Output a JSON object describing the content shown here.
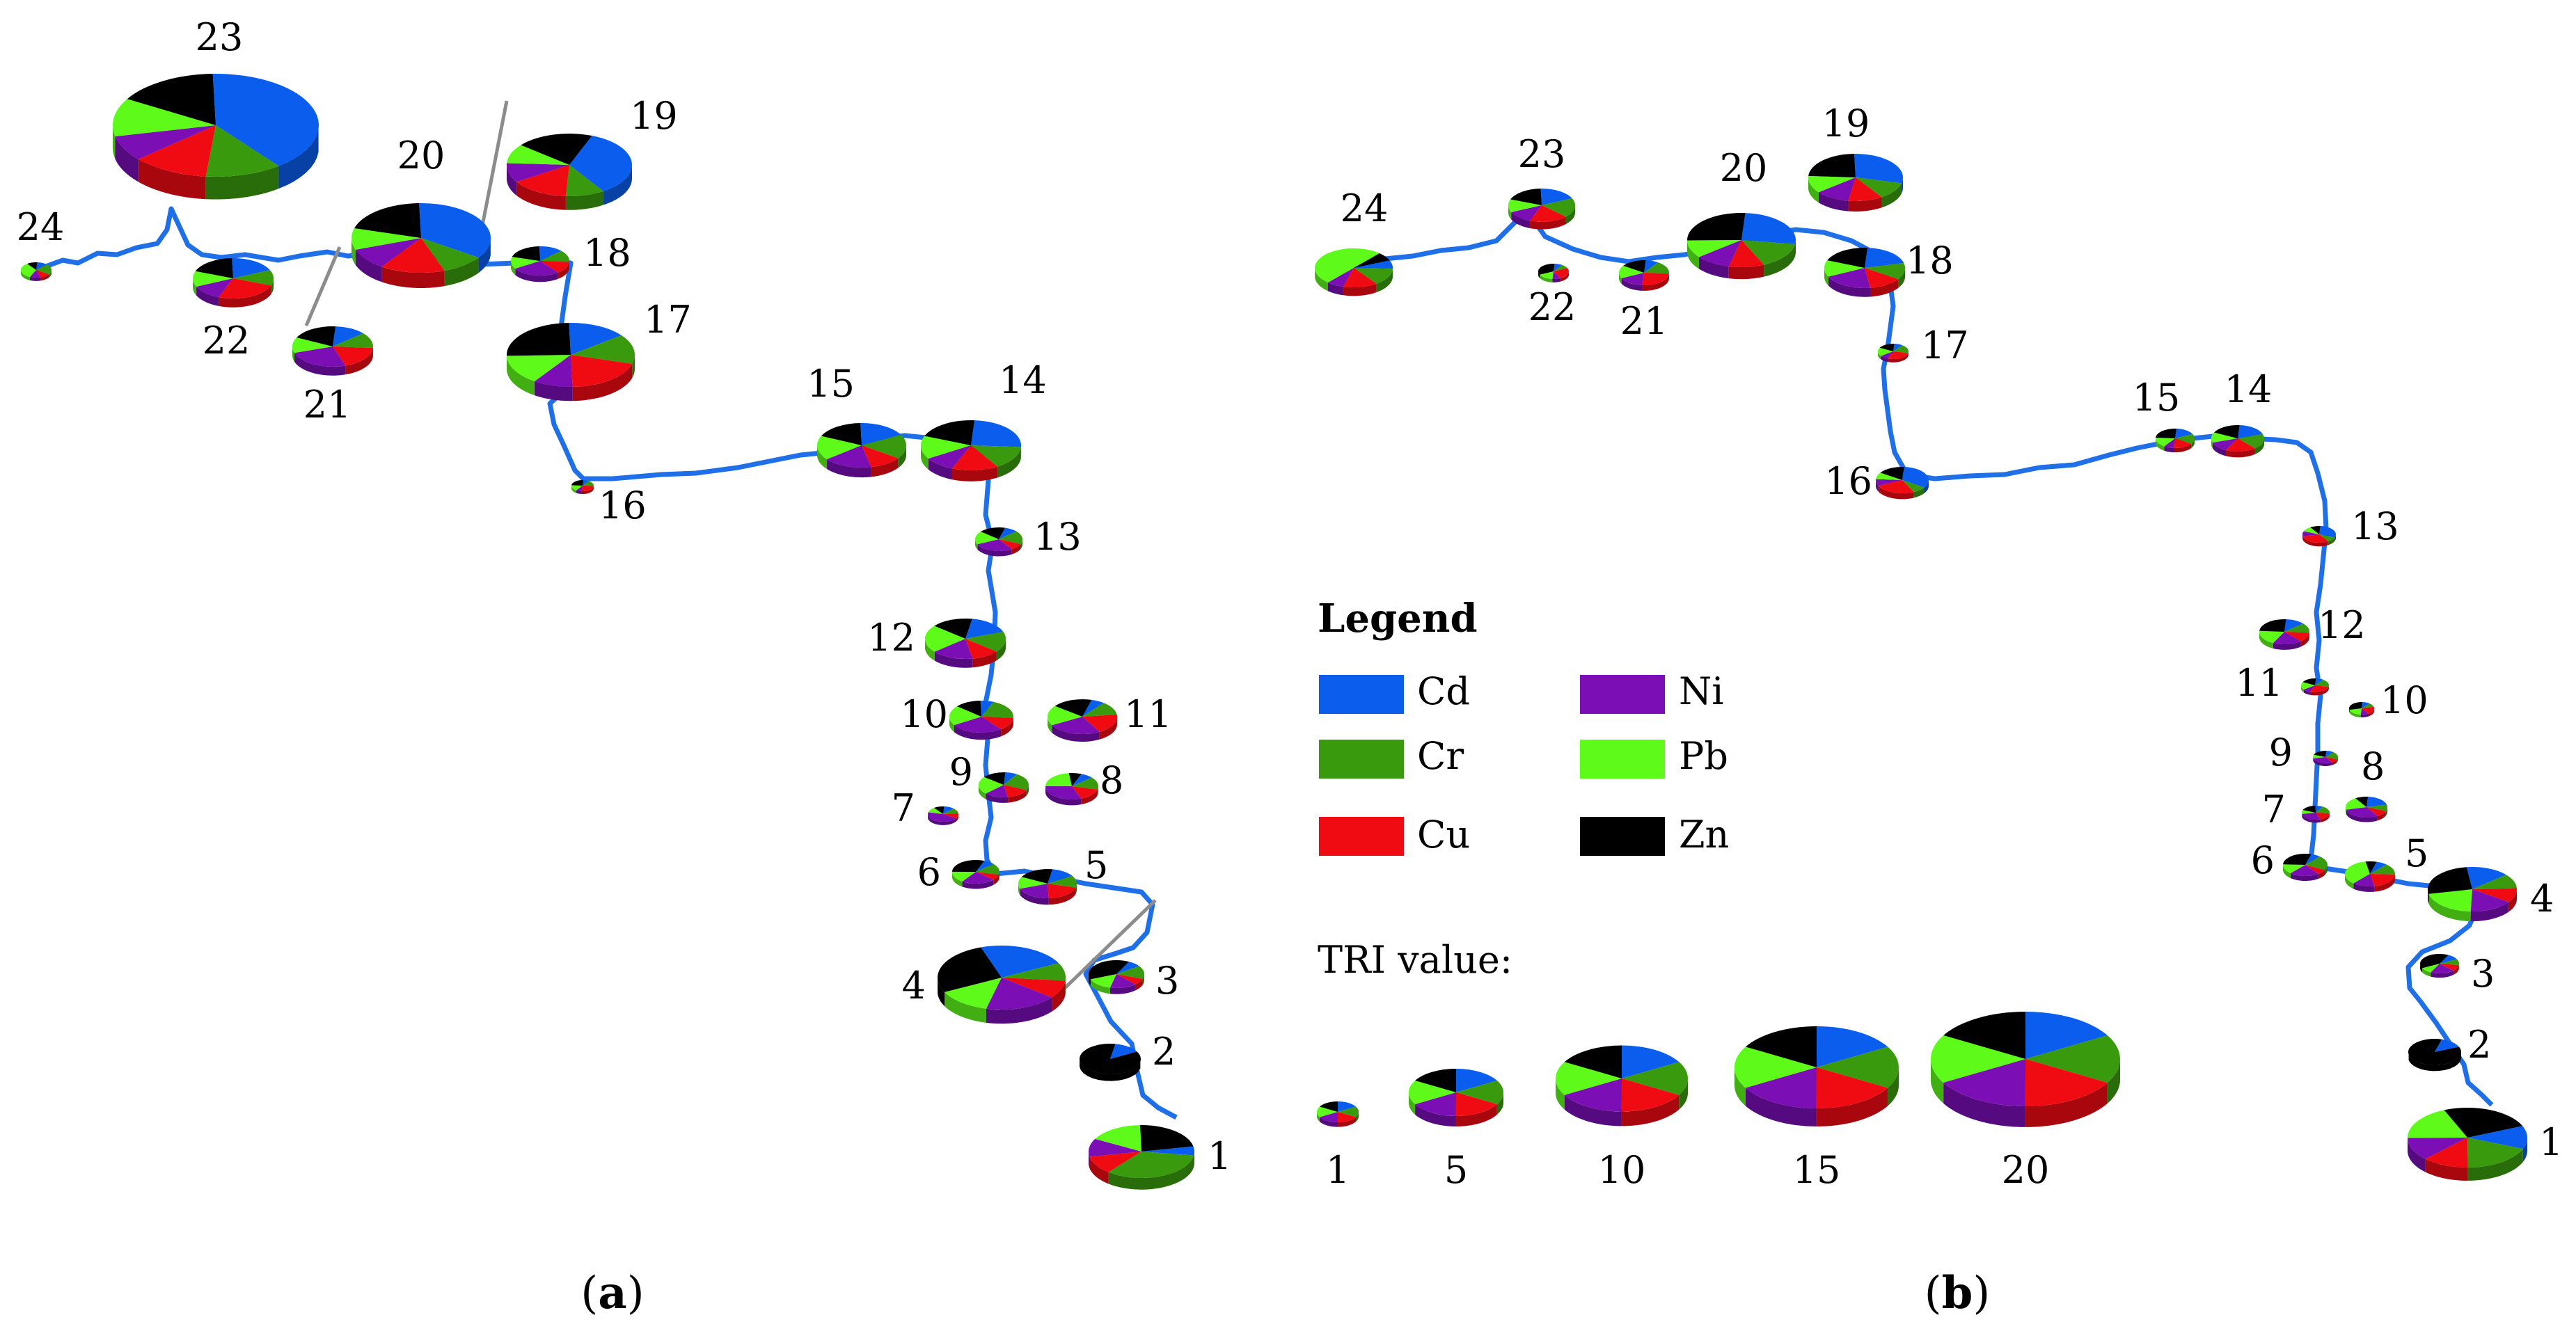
{
  "metals": [
    {
      "id": "Cd",
      "label": "Cd",
      "color": "#0a5ded"
    },
    {
      "id": "Cr",
      "label": "Cr",
      "color": "#3a9a0e"
    },
    {
      "id": "Cu",
      "label": "Cu",
      "color": "#f00a12"
    },
    {
      "id": "Ni",
      "label": "Ni",
      "color": "#7b0eb5"
    },
    {
      "id": "Pb",
      "label": "Pb",
      "color": "#5dfa1a"
    },
    {
      "id": "Zn",
      "label": "Zn",
      "color": "#000000"
    }
  ],
  "river_color": "#1e6fe8",
  "connector_color": "#8c8c8c",
  "legend": {
    "title": "Legend",
    "tri_title": "TRI value:",
    "tri_scale": [
      "1",
      "5",
      "10",
      "15",
      "20"
    ]
  },
  "panels": [
    {
      "label_open": "(",
      "label_letter": "a",
      "label_close": ")",
      "sites": [
        "1",
        "2",
        "3",
        "4",
        "5",
        "6",
        "7",
        "8",
        "9",
        "10",
        "11",
        "12",
        "13",
        "14",
        "15",
        "16",
        "17",
        "18",
        "19",
        "20",
        "21",
        "22",
        "23",
        "24"
      ]
    },
    {
      "label_open": "(",
      "label_letter": "b",
      "label_close": ")",
      "sites": [
        "1",
        "2",
        "3",
        "4",
        "5",
        "6",
        "7",
        "8",
        "9",
        "10",
        "11",
        "12",
        "13",
        "14",
        "15",
        "16",
        "17",
        "18",
        "19",
        "20",
        "21",
        "22",
        "23",
        "24"
      ]
    }
  ]
}
